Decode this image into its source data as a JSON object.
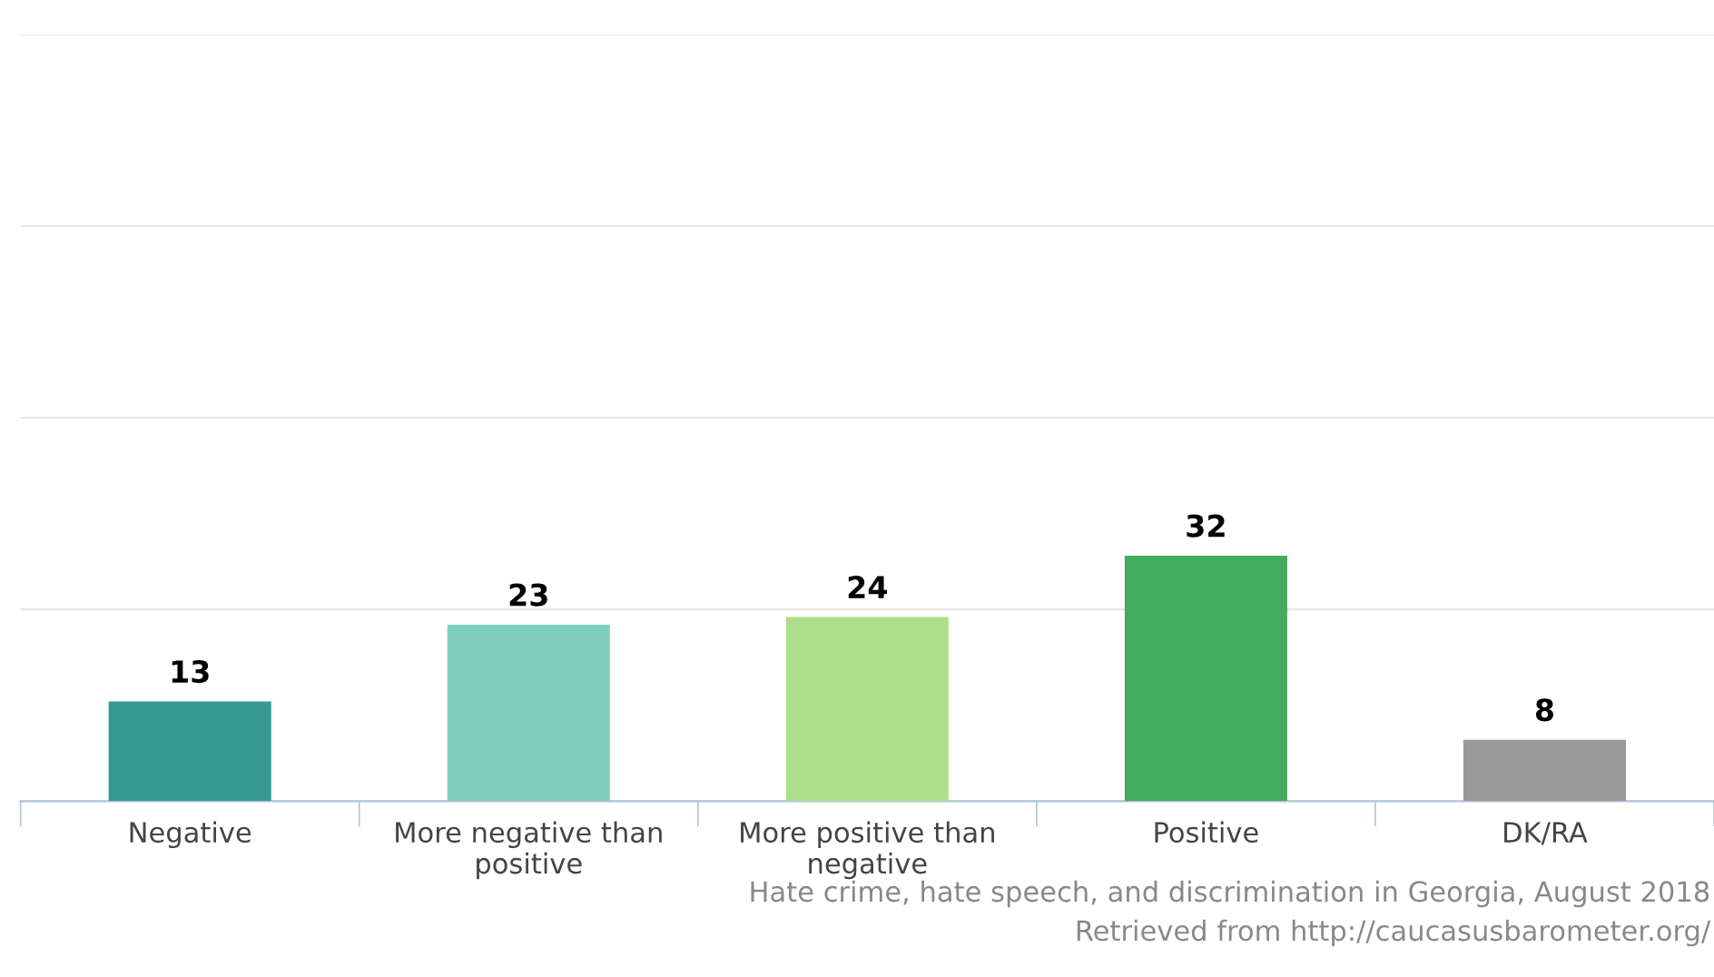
{
  "chart_data": {
    "type": "bar",
    "categories": [
      "Negative",
      "More negative than\npositive",
      "More positive than\nnegative",
      "Positive",
      "DK/RA"
    ],
    "values": [
      13,
      23,
      24,
      32,
      8
    ],
    "colors": [
      "#369a92",
      "#80cfbe",
      "#addf8c",
      "#42ab5d",
      "#999999"
    ],
    "ylim": [
      0,
      100
    ],
    "yticks": [
      {
        "value": 0,
        "label": null
      },
      {
        "value": 25,
        "label": null
      },
      {
        "value": 50,
        "label": null
      },
      {
        "value": 75,
        "label": null
      },
      {
        "value": 100,
        "label": null
      }
    ],
    "grid": "y",
    "tick_labels": "x",
    "data_labels": true,
    "annotations": [
      "Hate crime, hate speech, and discrimination in Georgia, August 2018",
      "Retrieved from http://caucasusbarometer.org/"
    ]
  }
}
